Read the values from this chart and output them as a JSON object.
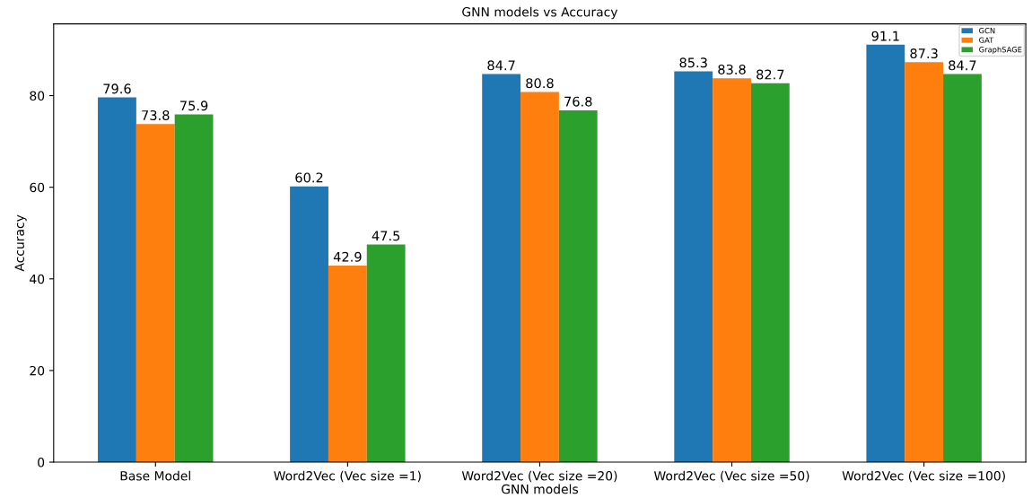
{
  "chart_data": {
    "type": "bar",
    "title": "GNN models vs Accuracy",
    "xlabel": "GNN models",
    "ylabel": "Accuracy",
    "categories": [
      "Base Model",
      "Word2Vec (Vec size =1)",
      "Word2Vec (Vec size =20)",
      "Word2Vec (Vec size =50)",
      "Word2Vec (Vec size =100)"
    ],
    "series": [
      {
        "name": "GCN",
        "color": "#1f77b4",
        "values": [
          79.6,
          60.2,
          84.7,
          85.3,
          91.1
        ]
      },
      {
        "name": "GAT",
        "color": "#ff7f0e",
        "values": [
          73.8,
          42.9,
          80.8,
          83.8,
          87.3
        ]
      },
      {
        "name": "GraphSAGE",
        "color": "#2ca02c",
        "values": [
          75.9,
          47.5,
          76.8,
          82.7,
          84.7
        ]
      }
    ],
    "ylim": [
      0,
      95.65
    ],
    "yticks": [
      0,
      20,
      40,
      60,
      80
    ],
    "data_labels": true,
    "legend": "top right",
    "grid": false
  }
}
